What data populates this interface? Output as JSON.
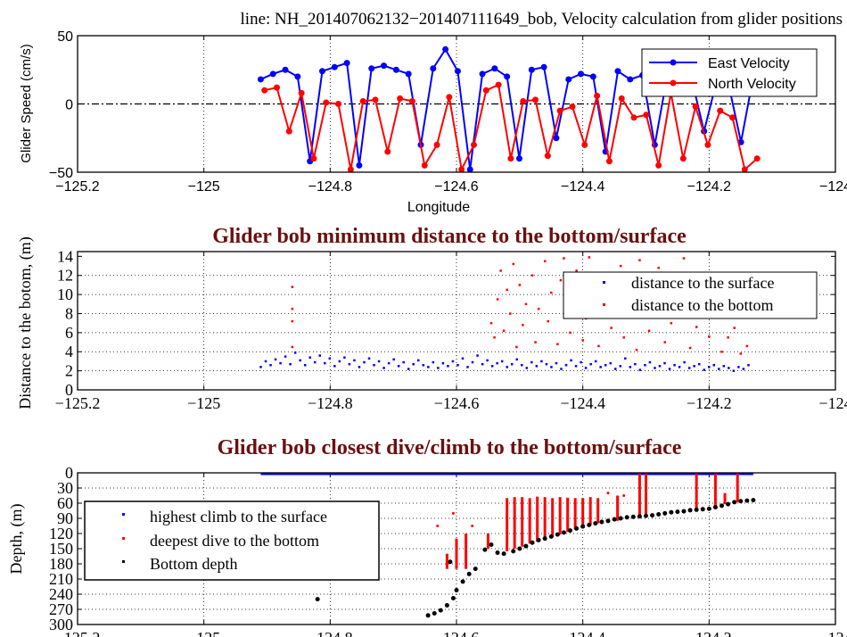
{
  "figure_title": "line: NH_201407062132−201407111649_bob, Velocity calculation from glider positions",
  "chart_data": [
    {
      "type": "line",
      "title": "",
      "xlabel": "Longitude",
      "ylabel": "Glider Speed (cm/s)",
      "xlim": [
        -125.2,
        -124
      ],
      "ylim": [
        -50,
        50
      ],
      "xticks": [
        "−125.2",
        "−125",
        "−124.8",
        "−124.6",
        "−124.4",
        "−124.2",
        "−124"
      ],
      "xtick_values": [
        -125.2,
        -125,
        -124.8,
        -124.6,
        -124.4,
        -124.2,
        -124
      ],
      "yticks": [
        "−50",
        "0",
        "50"
      ],
      "ytick_values": [
        -50,
        0,
        50
      ],
      "legend_position": "top-right",
      "x_start": -124.91,
      "x_step": 0.0195,
      "series": [
        {
          "name": "East Velocity",
          "color": "#0000ff",
          "values": [
            18,
            22,
            25,
            20,
            -42,
            24,
            27,
            30,
            -45,
            26,
            28,
            25,
            22,
            -30,
            26,
            40,
            24,
            -48,
            22,
            26,
            20,
            -40,
            25,
            27,
            -25,
            18,
            22,
            20,
            -35,
            24,
            18,
            21,
            -30,
            20,
            26,
            18,
            -20,
            16,
            14,
            -28,
            20
          ]
        },
        {
          "name": "North Velocity",
          "color": "#ff0000",
          "values": [
            10,
            12,
            -20,
            8,
            -40,
            1,
            0,
            -48,
            2,
            3,
            -35,
            4,
            2,
            -45,
            -30,
            5,
            -48,
            -30,
            10,
            14,
            -40,
            2,
            3,
            -38,
            -5,
            -2,
            -30,
            6,
            -42,
            4,
            -10,
            -8,
            -45,
            8,
            -40,
            -2,
            -30,
            -5,
            -10,
            -48,
            -40
          ]
        }
      ],
      "zero_line": 0
    },
    {
      "type": "scatter",
      "title": "Glider bob minimum distance to the bottom/surface",
      "xlabel": "",
      "ylabel": "Distance to the botom, (m)",
      "xlim": [
        -125.2,
        -124
      ],
      "ylim": [
        0,
        14.5
      ],
      "xticks": [
        "−125.2",
        "−125",
        "−124.8",
        "−124.6",
        "−124.4",
        "−124.2",
        "−124"
      ],
      "xtick_values": [
        -125.2,
        -125,
        -124.8,
        -124.6,
        -124.4,
        -124.2,
        -124
      ],
      "yticks": [
        "0",
        "2",
        "4",
        "6",
        "8",
        "10",
        "12",
        "14"
      ],
      "ytick_values": [
        0,
        2,
        4,
        6,
        8,
        10,
        12,
        14
      ],
      "legend_position": "top-right",
      "series": [
        {
          "name": "distance to the surface",
          "color": "#0000ff",
          "x_start": -124.91,
          "x_step": 0.0078,
          "values": [
            2.4,
            3.0,
            2.6,
            3.2,
            2.8,
            3.5,
            2.7,
            3.9,
            3.1,
            2.6,
            3.4,
            2.9,
            3.6,
            2.8,
            3.3,
            2.5,
            3.0,
            3.4,
            2.7,
            3.1,
            2.4,
            2.9,
            3.3,
            2.6,
            3.0,
            2.3,
            2.8,
            3.2,
            2.5,
            2.9,
            2.2,
            2.7,
            3.1,
            2.6,
            2.4,
            2.9,
            2.3,
            2.8,
            2.5,
            3.0,
            2.6,
            3.3,
            2.4,
            2.9,
            3.6,
            2.7,
            3.1,
            2.5,
            2.8,
            3.0,
            2.4,
            2.7,
            3.2,
            2.6,
            2.3,
            2.9,
            2.5,
            3.0,
            2.7,
            2.4,
            2.8,
            2.2,
            2.6,
            3.1,
            2.5,
            2.9,
            2.3,
            2.7,
            3.0,
            2.4,
            2.6,
            2.8,
            2.2,
            2.5,
            3.3,
            2.4,
            2.7,
            2.1,
            2.6,
            2.9,
            2.3,
            2.5,
            2.8,
            2.2,
            2.6,
            2.4,
            2.9,
            2.3,
            2.5,
            2.7,
            2.1,
            2.4,
            2.6,
            2.2,
            2.5,
            2.3,
            2.0,
            2.4,
            2.2,
            2.6
          ]
        },
        {
          "name": "distance to the bottom",
          "color": "#ff0000",
          "points": [
            [
              -124.86,
              7.2
            ],
            [
              -124.86,
              8.5
            ],
            [
              -124.86,
              10.8
            ],
            [
              -124.86,
              4.5
            ],
            [
              -124.545,
              7.0
            ],
            [
              -124.54,
              5.5
            ],
            [
              -124.535,
              9.5
            ],
            [
              -124.53,
              12.5
            ],
            [
              -124.525,
              6.2
            ],
            [
              -124.52,
              10.5
            ],
            [
              -124.515,
              8.0
            ],
            [
              -124.51,
              13.2
            ],
            [
              -124.505,
              4.5
            ],
            [
              -124.5,
              11.0
            ],
            [
              -124.495,
              6.8
            ],
            [
              -124.49,
              9.0
            ],
            [
              -124.48,
              12.0
            ],
            [
              -124.475,
              5.0
            ],
            [
              -124.47,
              8.5
            ],
            [
              -124.46,
              13.5
            ],
            [
              -124.455,
              7.2
            ],
            [
              -124.45,
              10.2
            ],
            [
              -124.44,
              4.8
            ],
            [
              -124.435,
              11.5
            ],
            [
              -124.43,
              13.8
            ],
            [
              -124.425,
              8.8
            ],
            [
              -124.42,
              6.0
            ],
            [
              -124.41,
              12.5
            ],
            [
              -124.405,
              9.8
            ],
            [
              -124.4,
              5.2
            ],
            [
              -124.395,
              7.5
            ],
            [
              -124.39,
              13.9
            ],
            [
              -124.38,
              10.8
            ],
            [
              -124.375,
              4.6
            ],
            [
              -124.37,
              8.2
            ],
            [
              -124.36,
              12.2
            ],
            [
              -124.355,
              6.5
            ],
            [
              -124.35,
              9.2
            ],
            [
              -124.34,
              13.0
            ],
            [
              -124.335,
              5.5
            ],
            [
              -124.33,
              11.0
            ],
            [
              -124.32,
              7.8
            ],
            [
              -124.315,
              4.2
            ],
            [
              -124.31,
              13.6
            ],
            [
              -124.3,
              10.0
            ],
            [
              -124.295,
              6.2
            ],
            [
              -124.29,
              8.8
            ],
            [
              -124.28,
              12.8
            ],
            [
              -124.27,
              5.0
            ],
            [
              -124.26,
              7.0
            ],
            [
              -124.25,
              9.5
            ],
            [
              -124.24,
              13.8
            ],
            [
              -124.23,
              4.4
            ],
            [
              -124.22,
              6.6
            ],
            [
              -124.21,
              11.8
            ],
            [
              -124.2,
              5.6
            ],
            [
              -124.19,
              9.0
            ],
            [
              -124.18,
              4.0
            ],
            [
              -124.17,
              5.5
            ],
            [
              -124.16,
              6.5
            ],
            [
              -124.15,
              3.8
            ],
            [
              -124.14,
              4.6
            ]
          ]
        }
      ]
    },
    {
      "type": "scatter",
      "title": "Glider bob closest dive/climb to the bottom/surface",
      "xlabel": "",
      "ylabel": "Depth, (m)",
      "xlim": [
        -125.2,
        -124
      ],
      "ylim": [
        300,
        0
      ],
      "xticks": [
        "−125.2",
        "−125",
        "−124.8",
        "−124.6",
        "−124.4",
        "−124.2",
        "−124"
      ],
      "xtick_values": [
        -125.2,
        -125,
        -124.8,
        -124.6,
        -124.4,
        -124.2,
        -124
      ],
      "yticks": [
        "0",
        "30",
        "60",
        "90",
        "120",
        "150",
        "180",
        "210",
        "240",
        "270",
        "300"
      ],
      "ytick_values": [
        0,
        30,
        60,
        90,
        120,
        150,
        180,
        210,
        240,
        270,
        300
      ],
      "legend_position": "center-left",
      "series": [
        {
          "name": "highest climb to the surface",
          "color": "#0000ff",
          "x_range": [
            -124.91,
            -124.13
          ],
          "depth": 0
        },
        {
          "name": "deepest dive to the bottom",
          "color": "#ff0000",
          "segments": [
            [
              -124.63,
              105,
              105
            ],
            [
              -124.605,
              80,
              80
            ],
            [
              -124.575,
              105,
              105
            ],
            [
              -124.615,
              160,
              190
            ],
            [
              -124.6,
              130,
              190
            ],
            [
              -124.585,
              120,
              190
            ],
            [
              -124.55,
              120,
              150
            ],
            [
              -124.52,
              50,
              155
            ],
            [
              -124.508,
              48,
              150
            ],
            [
              -124.496,
              48,
              146
            ],
            [
              -124.484,
              50,
              140
            ],
            [
              -124.472,
              47,
              136
            ],
            [
              -124.46,
              48,
              130
            ],
            [
              -124.448,
              50,
              127
            ],
            [
              -124.436,
              48,
              122
            ],
            [
              -124.424,
              49,
              117
            ],
            [
              -124.412,
              50,
              112
            ],
            [
              -124.4,
              50,
              108
            ],
            [
              -124.388,
              48,
              104
            ],
            [
              -124.376,
              50,
              100
            ],
            [
              -124.36,
              40,
              40
            ],
            [
              -124.345,
              45,
              95
            ],
            [
              -124.335,
              45,
              45
            ],
            [
              -124.31,
              0,
              90
            ],
            [
              -124.3,
              0,
              86
            ],
            [
              -124.22,
              0,
              72
            ],
            [
              -124.19,
              0,
              66
            ],
            [
              -124.175,
              40,
              62
            ],
            [
              -124.155,
              0,
              58
            ]
          ]
        },
        {
          "name": "Bottom depth",
          "color": "#000000",
          "points": [
            [
              -124.82,
              250
            ],
            [
              -124.645,
              282
            ],
            [
              -124.635,
              278
            ],
            [
              -124.625,
              272
            ],
            [
              -124.615,
              262
            ],
            [
              -124.61,
              176
            ],
            [
              -124.605,
              248
            ],
            [
              -124.6,
              232
            ],
            [
              -124.59,
              215
            ],
            [
              -124.58,
              200
            ],
            [
              -124.57,
              190
            ],
            [
              -124.555,
              152
            ],
            [
              -124.545,
              142
            ],
            [
              -124.535,
              158
            ],
            [
              -124.525,
              160
            ],
            [
              -124.51,
              155
            ],
            [
              -124.5,
              150
            ],
            [
              -124.49,
              145
            ],
            [
              -124.48,
              138
            ],
            [
              -124.47,
              133
            ],
            [
              -124.46,
              130
            ],
            [
              -124.45,
              126
            ],
            [
              -124.44,
              122
            ],
            [
              -124.43,
              118
            ],
            [
              -124.42,
              114
            ],
            [
              -124.41,
              110
            ],
            [
              -124.4,
              106
            ],
            [
              -124.39,
              103
            ],
            [
              -124.38,
              100
            ],
            [
              -124.37,
              97
            ],
            [
              -124.36,
              95
            ],
            [
              -124.35,
              92
            ],
            [
              -124.34,
              90
            ],
            [
              -124.33,
              88
            ],
            [
              -124.32,
              87
            ],
            [
              -124.31,
              86
            ],
            [
              -124.3,
              85
            ],
            [
              -124.29,
              84
            ],
            [
              -124.28,
              82
            ],
            [
              -124.27,
              80
            ],
            [
              -124.26,
              78
            ],
            [
              -124.25,
              77
            ],
            [
              -124.24,
              76
            ],
            [
              -124.23,
              74
            ],
            [
              -124.22,
              73
            ],
            [
              -124.21,
              72
            ],
            [
              -124.2,
              71
            ],
            [
              -124.19,
              68
            ],
            [
              -124.18,
              65
            ],
            [
              -124.17,
              62
            ],
            [
              -124.16,
              58
            ],
            [
              -124.15,
              56
            ],
            [
              -124.14,
              55
            ],
            [
              -124.13,
              54
            ]
          ]
        }
      ]
    }
  ]
}
